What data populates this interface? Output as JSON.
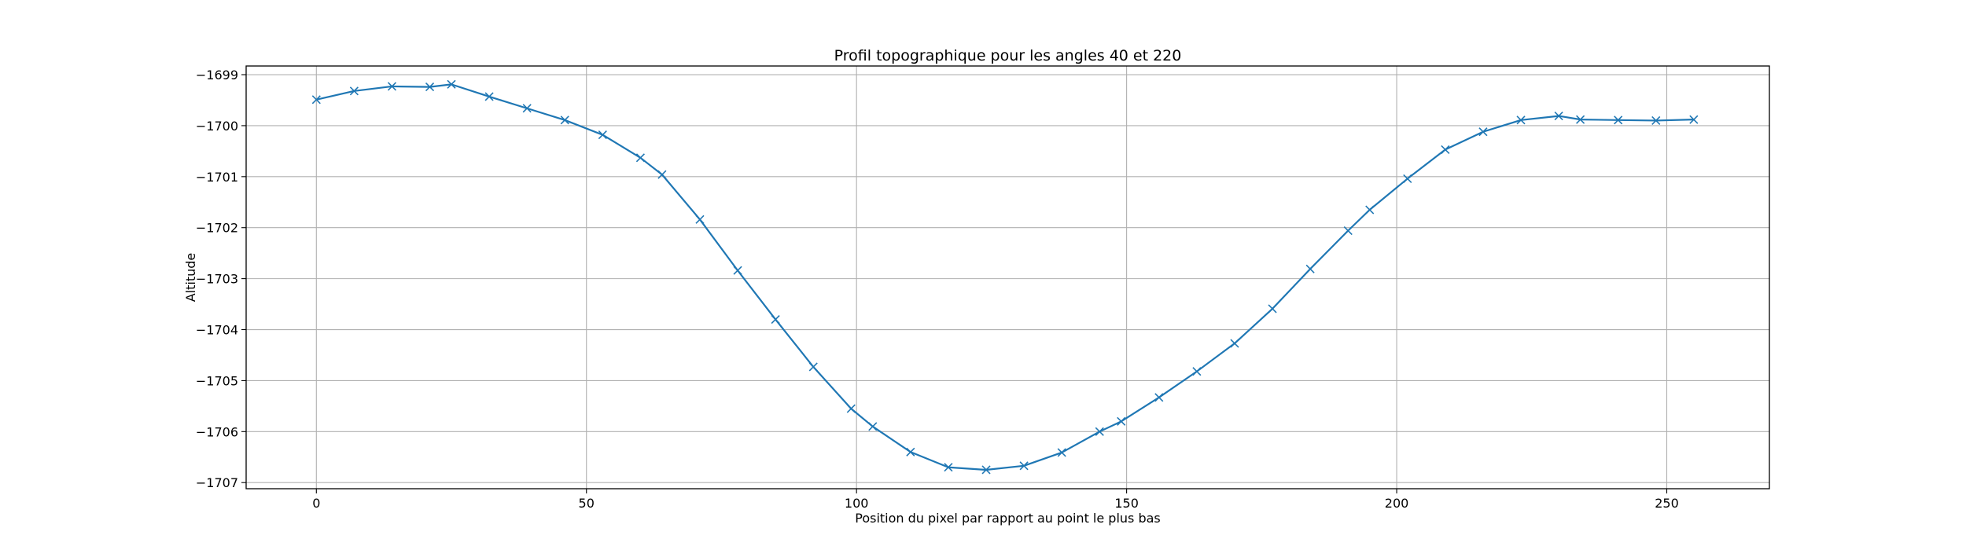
{
  "chart_data": {
    "type": "line",
    "title": "Profil topographique pour les angles 40 et 220",
    "xlabel": "Position du pixel par rapport au point le plus bas",
    "ylabel": "Altitude",
    "xlim": [
      -13,
      269
    ],
    "ylim": [
      -1707.12,
      -1698.83
    ],
    "xticks": [
      0,
      50,
      100,
      150,
      200,
      250
    ],
    "xtick_labels": [
      "0",
      "50",
      "100",
      "150",
      "200",
      "250"
    ],
    "yticks": [
      -1699,
      -1700,
      -1701,
      -1702,
      -1703,
      -1704,
      -1705,
      -1706,
      -1707
    ],
    "ytick_labels": [
      "−1699",
      "−1700",
      "−1701",
      "−1702",
      "−1703",
      "−1704",
      "−1705",
      "−1706",
      "−1707"
    ],
    "grid": true,
    "marker": "x",
    "series": [
      {
        "color": "#1f77b4",
        "x": [
          0,
          7,
          14,
          21,
          25,
          32,
          39,
          46,
          53,
          60,
          64,
          71,
          78,
          85,
          92,
          99,
          103,
          110,
          117,
          124,
          131,
          138,
          145,
          149,
          156,
          163,
          170,
          177,
          184,
          191,
          195,
          202,
          209,
          216,
          223,
          230,
          234,
          241,
          248,
          255
        ],
        "y": [
          -1699.49,
          -1699.32,
          -1699.23,
          -1699.24,
          -1699.19,
          -1699.43,
          -1699.66,
          -1699.89,
          -1700.18,
          -1700.63,
          -1700.96,
          -1701.84,
          -1702.84,
          -1703.8,
          -1704.73,
          -1705.55,
          -1705.9,
          -1706.4,
          -1706.7,
          -1706.75,
          -1706.67,
          -1706.41,
          -1706.0,
          -1705.8,
          -1705.33,
          -1704.82,
          -1704.27,
          -1703.59,
          -1702.81,
          -1702.06,
          -1701.65,
          -1701.04,
          -1700.47,
          -1700.12,
          -1699.89,
          -1699.81,
          -1699.88,
          -1699.89,
          -1699.9,
          -1699.88
        ]
      }
    ]
  }
}
